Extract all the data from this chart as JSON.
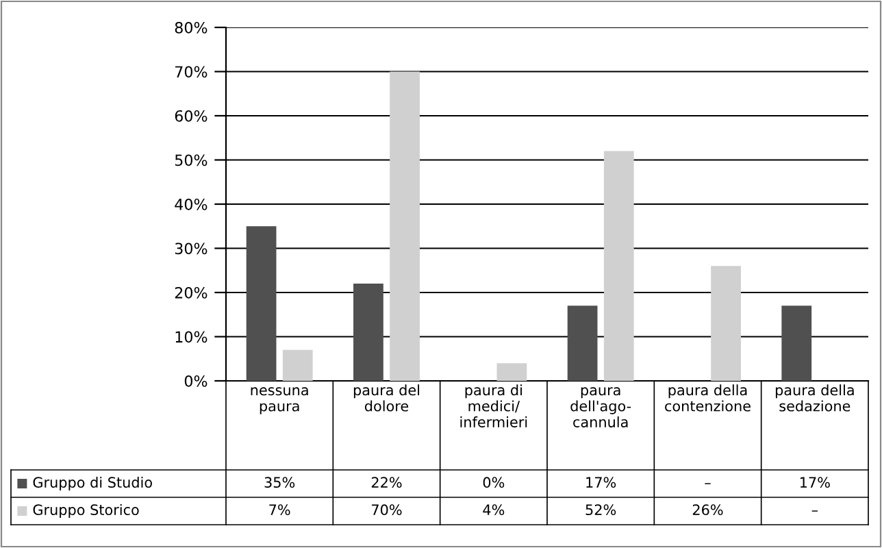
{
  "chart_data": {
    "type": "bar",
    "categories": [
      "nessuna\npaura",
      "paura del\ndolore",
      "paura di\nmedici/\ninfermieri",
      "paura\ndell'ago-\ncannula",
      "paura della\ncontenzione",
      "paura della\nsedazione"
    ],
    "series": [
      {
        "name": "Gruppo di Studio",
        "color": "#505050",
        "values": [
          35,
          22,
          0,
          17,
          null,
          17
        ],
        "value_labels": [
          "35%",
          "22%",
          "0%",
          "17%",
          "–",
          "17%"
        ]
      },
      {
        "name": "Gruppo Storico",
        "color": "#d0d0d0",
        "values": [
          7,
          70,
          4,
          52,
          26,
          null
        ],
        "value_labels": [
          "7%",
          "70%",
          "4%",
          "52%",
          "26%",
          "–"
        ]
      }
    ],
    "ylim": [
      0,
      80
    ],
    "yticks": [
      {
        "value": 0,
        "label": "0%"
      },
      {
        "value": 10,
        "label": "10%"
      },
      {
        "value": 20,
        "label": "20%"
      },
      {
        "value": 30,
        "label": "30%"
      },
      {
        "value": 40,
        "label": "40%"
      },
      {
        "value": 50,
        "label": "50%"
      },
      {
        "value": 60,
        "label": "60%"
      },
      {
        "value": 70,
        "label": "70%"
      },
      {
        "value": 80,
        "label": "80%"
      }
    ],
    "grid": "y",
    "legend": "bottom"
  }
}
